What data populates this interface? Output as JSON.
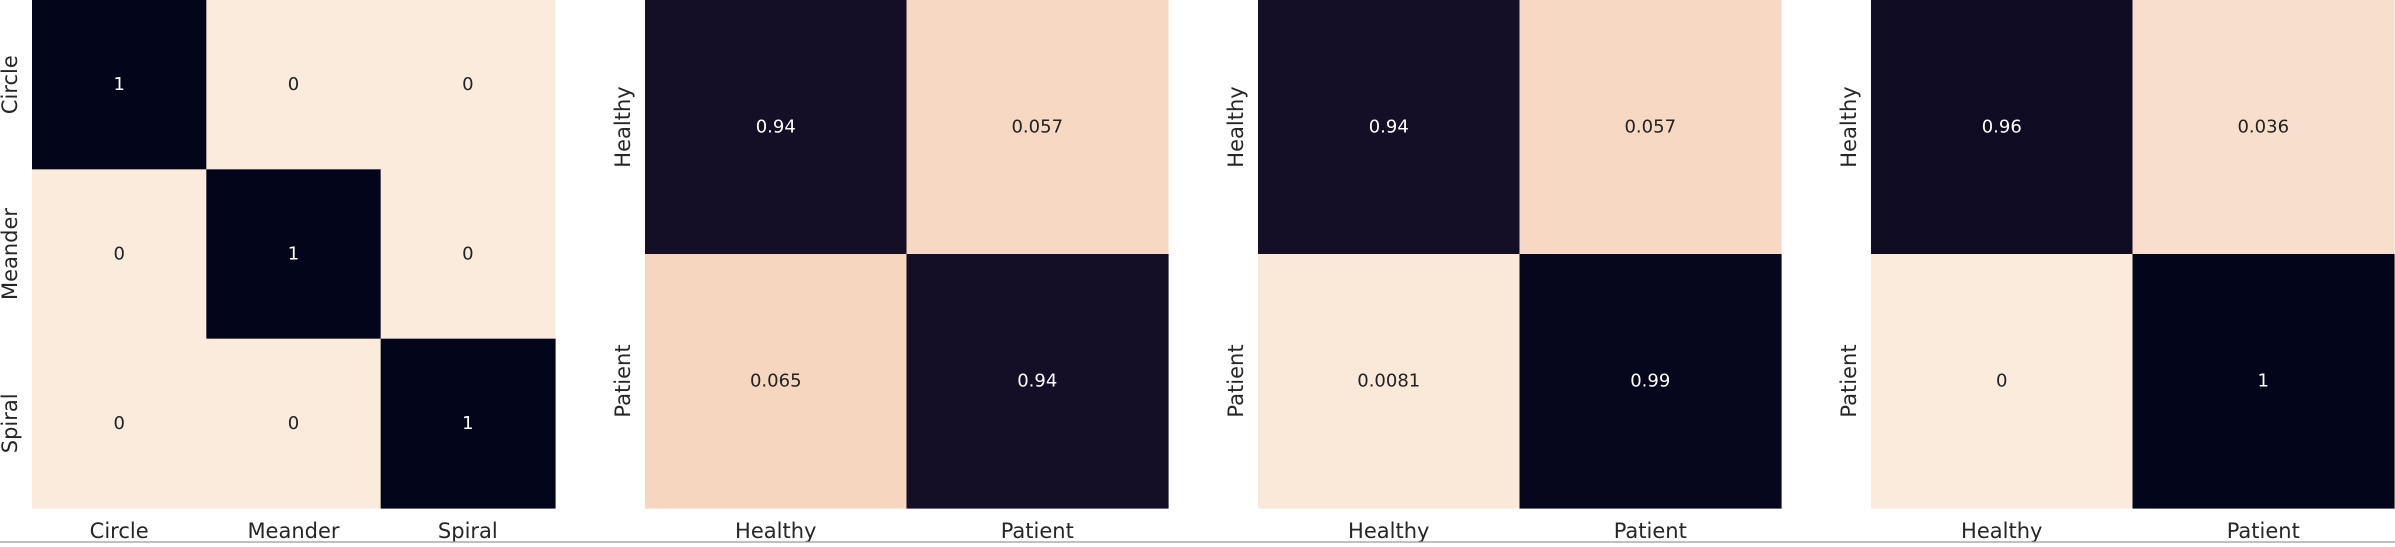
{
  "chart_data": [
    {
      "type": "heatmap",
      "x_categories": [
        "Circle",
        "Meander",
        "Spiral"
      ],
      "y_categories": [
        "Circle",
        "Meander",
        "Spiral"
      ],
      "values": [
        [
          1,
          0,
          0
        ],
        [
          0,
          1,
          0
        ],
        [
          0,
          0,
          1
        ]
      ],
      "labels": [
        [
          "1",
          "0",
          "0"
        ],
        [
          "0",
          "1",
          "0"
        ],
        [
          "0",
          "0",
          "1"
        ]
      ]
    },
    {
      "type": "heatmap",
      "x_categories": [
        "Healthy",
        "Patient"
      ],
      "y_categories": [
        "Healthy",
        "Patient"
      ],
      "values": [
        [
          0.94,
          0.057
        ],
        [
          0.065,
          0.94
        ]
      ],
      "labels": [
        [
          "0.94",
          "0.057"
        ],
        [
          "0.065",
          "0.94"
        ]
      ]
    },
    {
      "type": "heatmap",
      "x_categories": [
        "Healthy",
        "Patient"
      ],
      "y_categories": [
        "Healthy",
        "Patient"
      ],
      "values": [
        [
          0.94,
          0.057
        ],
        [
          0.0081,
          0.99
        ]
      ],
      "labels": [
        [
          "0.94",
          "0.057"
        ],
        [
          "0.0081",
          "0.99"
        ]
      ]
    },
    {
      "type": "heatmap",
      "x_categories": [
        "Healthy",
        "Patient"
      ],
      "y_categories": [
        "Healthy",
        "Patient"
      ],
      "values": [
        [
          0.96,
          0.036
        ],
        [
          0,
          1
        ]
      ],
      "labels": [
        [
          "0.96",
          "0.036"
        ],
        [
          "0",
          "1"
        ]
      ]
    }
  ],
  "colormap": {
    "low": "#faebdd",
    "high": "#03051a"
  }
}
